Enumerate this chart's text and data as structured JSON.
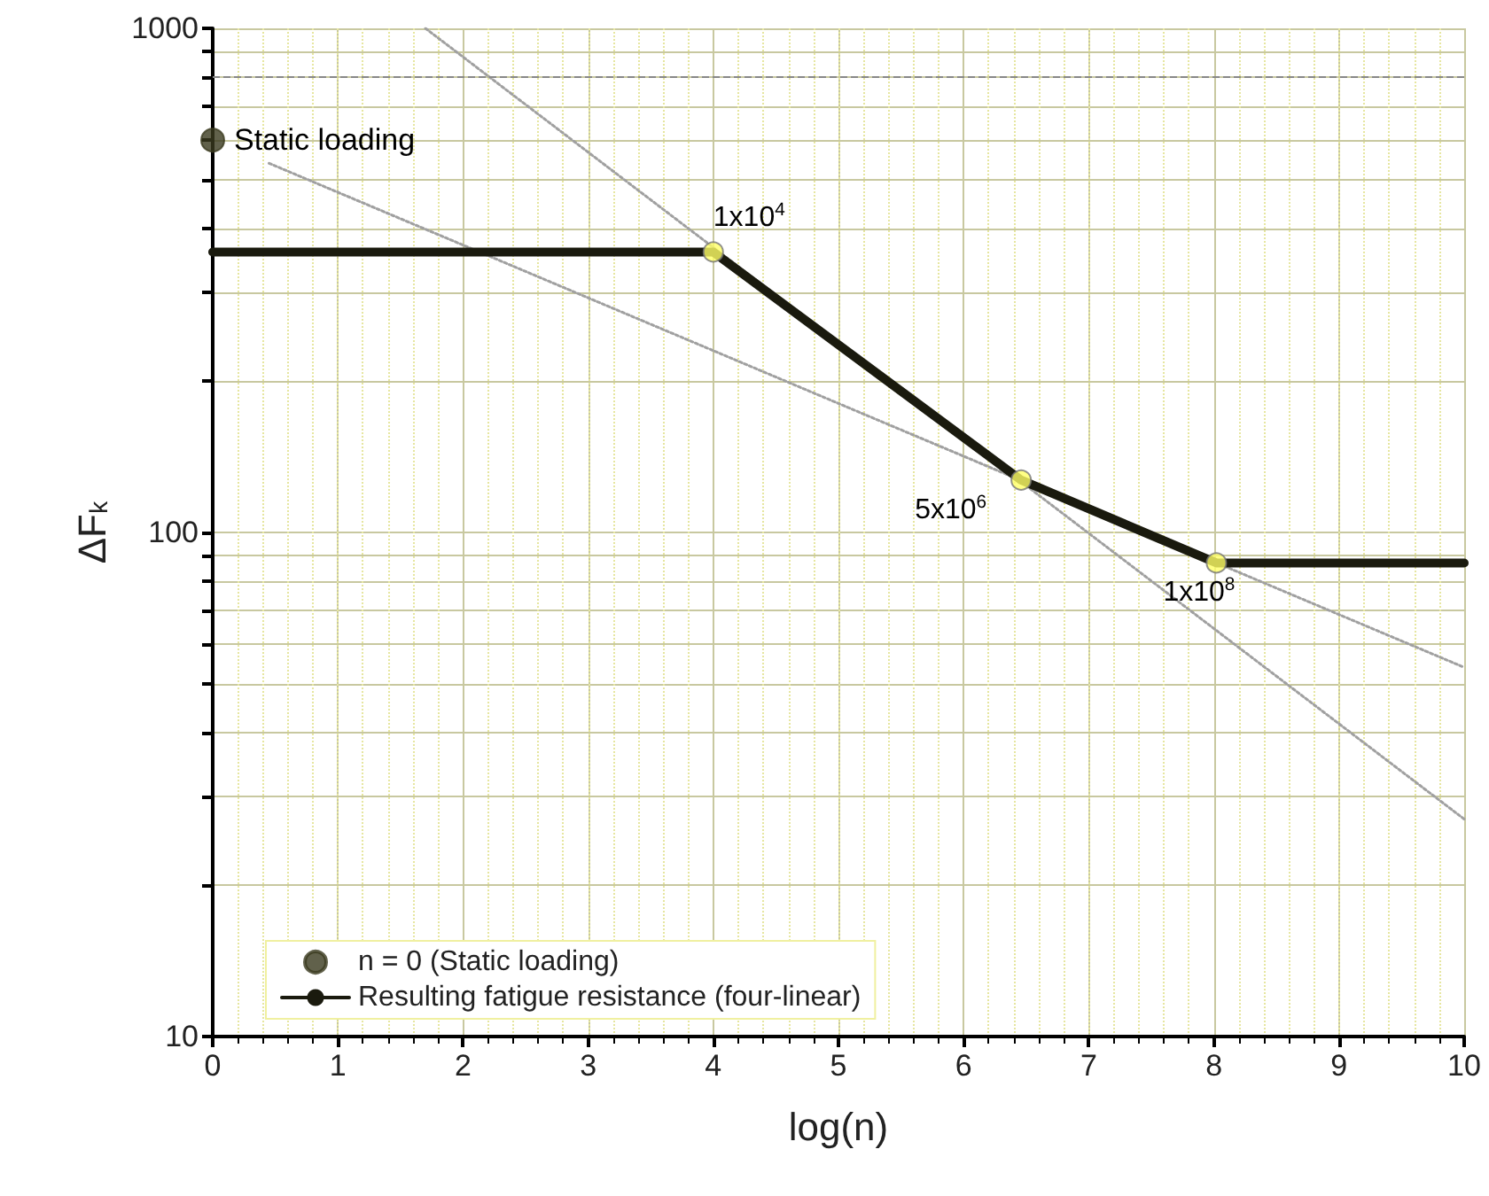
{
  "chart_data": {
    "type": "line",
    "xlabel": "log(n)",
    "ylabel": "ΔF$_{k}$",
    "xlim": [
      0,
      10
    ],
    "xticks": [
      0,
      1,
      2,
      3,
      4,
      5,
      6,
      7,
      8,
      9,
      10
    ],
    "ylim": [
      10,
      1000
    ],
    "log": "y",
    "yticks": [
      10,
      {
        "value": 20,
        "label": null
      },
      {
        "value": 30,
        "label": null
      },
      {
        "value": 40,
        "label": null
      },
      {
        "value": 50,
        "label": null
      },
      {
        "value": 60,
        "label": null
      },
      {
        "value": 70,
        "label": null
      },
      {
        "value": 80,
        "label": null
      },
      {
        "value": 90,
        "label": null
      },
      100,
      {
        "value": 200,
        "label": null
      },
      {
        "value": 300,
        "label": null
      },
      {
        "value": 400,
        "label": null
      },
      {
        "value": 500,
        "label": null
      },
      {
        "value": 600,
        "label": null
      },
      {
        "value": 700,
        "label": null
      },
      {
        "value": 800,
        "label": null
      },
      {
        "value": 900,
        "label": null
      },
      1000
    ],
    "grid": true,
    "legend": "bottom left",
    "series": [
      {
        "name": "n = 0 (Static loading)",
        "type": "scatter",
        "marker": "circle",
        "color": "#3a3a1e",
        "x": [
          0
        ],
        "values": [
          600
        ]
      },
      {
        "marker": "none",
        "line_style": "dotted",
        "color": "#a0a0a0",
        "x": [
          1.7,
          10
        ],
        "values": [
          1000,
          27
        ]
      },
      {
        "marker": "none",
        "line_style": "dotted",
        "color": "#a0a0a0",
        "x": [
          0.45,
          10
        ],
        "values": [
          540,
          54
        ]
      },
      {
        "name": "Resulting fatigue resistance (four-linear)",
        "marker": "none",
        "line_style": "solid",
        "color": "#1a1a0e",
        "x": [
          0,
          4,
          6.46,
          8.02,
          10
        ],
        "values": [
          360,
          360,
          127,
          87,
          87
        ]
      },
      {
        "type": "scatter",
        "marker": "circle",
        "color": "#ffff66",
        "x": [
          4,
          6.46,
          8.02
        ],
        "values": [
          360,
          127,
          87
        ]
      }
    ],
    "ref_lines": [
      {
        "axis": "y",
        "value": 800,
        "label": null,
        "color": "#888888",
        "line_style": "dashed"
      }
    ],
    "annotations": [
      {
        "text": "Static loading",
        "x": 0,
        "y": 600
      },
      {
        "text": "1x10$^{4}$",
        "x": 4,
        "y": 360
      },
      {
        "text": "5x10$^{6}$",
        "x": 6.46,
        "y": 127
      },
      {
        "text": "1x10$^{8}$",
        "x": 8.02,
        "y": 87
      }
    ]
  }
}
